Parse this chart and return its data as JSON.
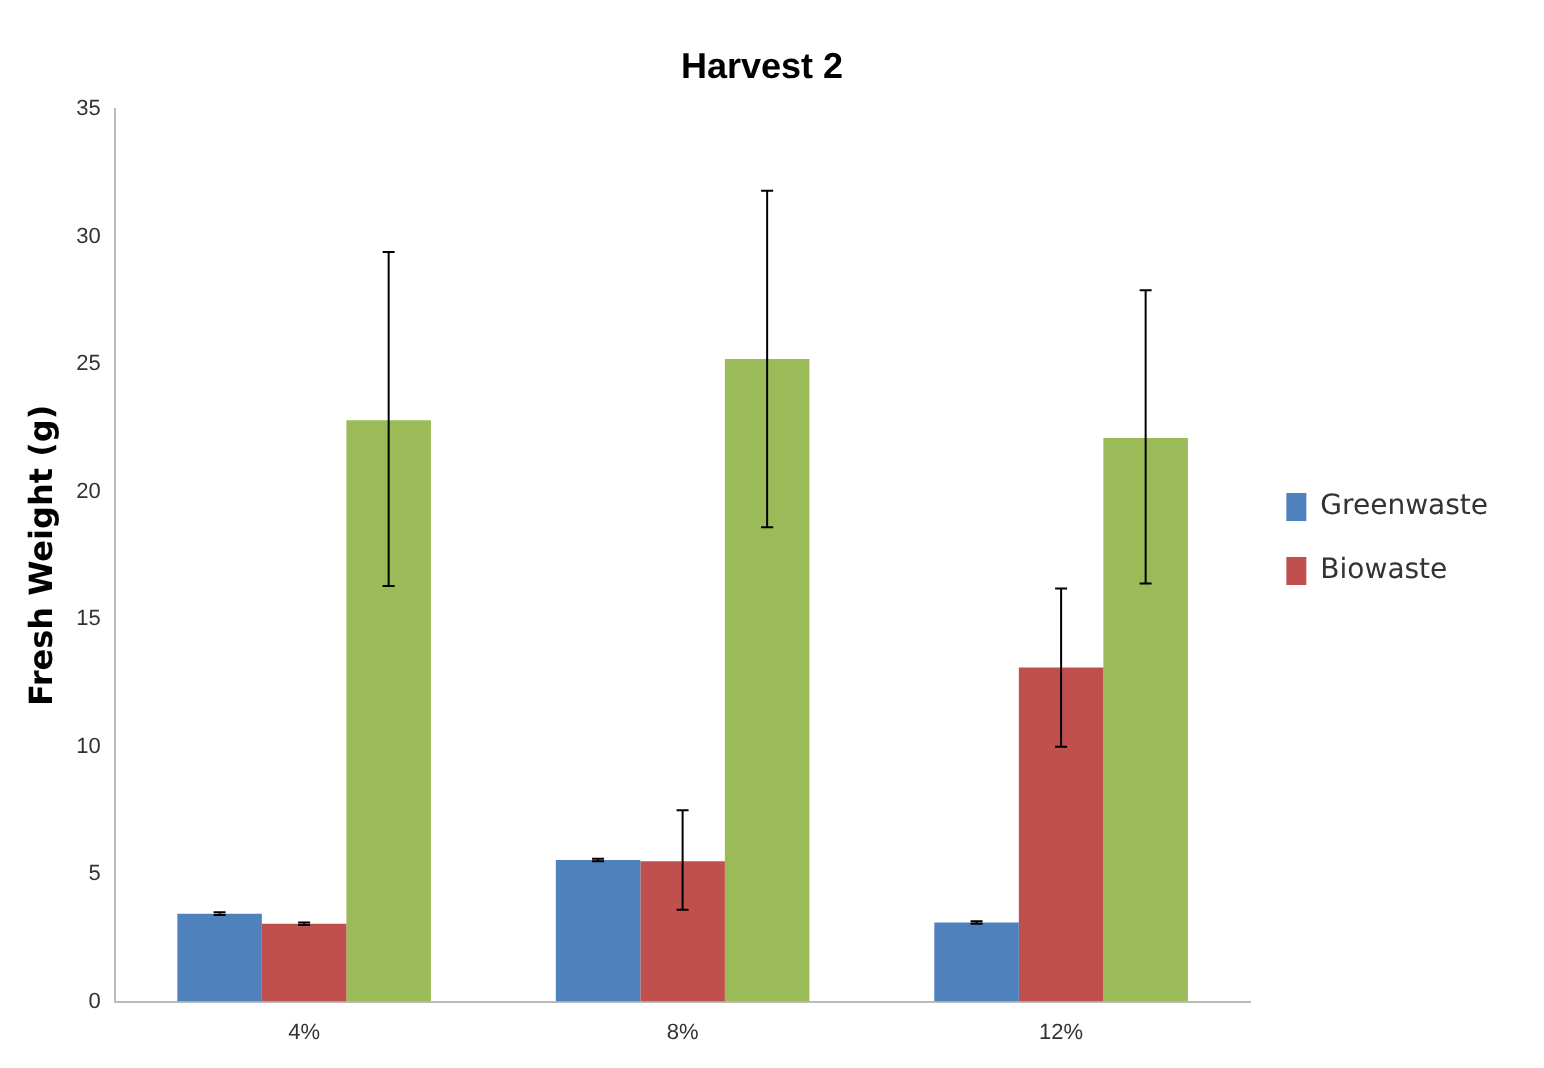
{
  "chart_data": {
    "type": "bar",
    "title": "Harvest 2",
    "ylabel": "Fresh Weight (g)",
    "categories": [
      "4%",
      "8%",
      "12%"
    ],
    "series": [
      {
        "name": "Greenwaste",
        "color": "#4f81bd",
        "values": [
          3.45,
          5.55,
          3.1
        ],
        "errors": [
          0.05,
          0.05,
          0.05
        ]
      },
      {
        "name": "Biowaste",
        "color": "#c0504d",
        "values": [
          3.05,
          5.5,
          13.1
        ],
        "errors": [
          [
            3.0,
            3.1
          ],
          [
            3.6,
            7.5
          ],
          [
            10.0,
            16.2
          ]
        ]
      },
      {
        "color": "#9bbb59",
        "values": [
          22.8,
          25.2,
          22.1
        ],
        "errors": [
          [
            16.3,
            29.4
          ],
          [
            18.6,
            31.8
          ],
          [
            16.4,
            27.9
          ]
        ]
      }
    ],
    "ylim": [
      0,
      35
    ],
    "yticks": [
      0,
      5,
      10,
      15,
      20,
      25,
      30,
      35
    ],
    "grid": false,
    "legend": "right"
  }
}
